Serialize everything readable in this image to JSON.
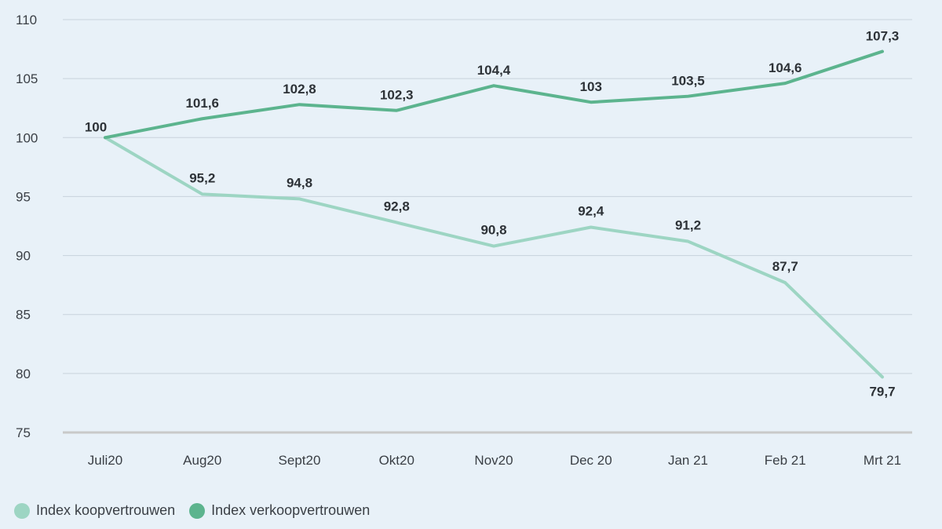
{
  "chart_data": {
    "type": "line",
    "categories": [
      "Juli20",
      "Aug20",
      "Sept20",
      "Okt20",
      "Nov20",
      "Dec 20",
      "Jan 21",
      "Feb 21",
      "Mrt 21"
    ],
    "yticks": [
      "75",
      "80",
      "85",
      "90",
      "95",
      "100",
      "105",
      "110"
    ],
    "ylim": [
      75,
      110
    ],
    "grid": true,
    "legend_position": "bottom-left",
    "series": [
      {
        "name": "Index koopvertrouwen",
        "color": "#9dd5c3",
        "values": [
          100,
          95.2,
          94.8,
          92.8,
          90.8,
          92.4,
          91.2,
          87.7,
          79.7
        ],
        "labels": [
          "100",
          "95,2",
          "94,8",
          "92,8",
          "90,8",
          "92,4",
          "91,2",
          "87,7",
          "79,7"
        ]
      },
      {
        "name": "Index verkoopvertrouwen",
        "color": "#5cb48e",
        "values": [
          100,
          101.6,
          102.8,
          102.3,
          104.4,
          103,
          103.5,
          104.6,
          107.3
        ],
        "labels": [
          "100",
          "101,6",
          "102,8",
          "102,3",
          "104,4",
          "103",
          "103,5",
          "104,6",
          "107,3"
        ]
      }
    ]
  }
}
